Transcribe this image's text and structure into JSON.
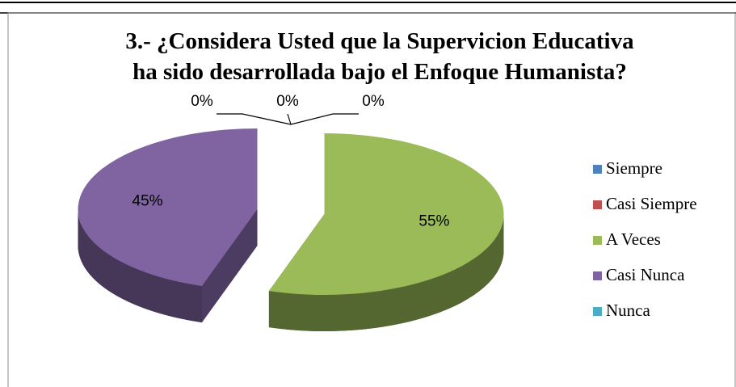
{
  "chart_data": {
    "type": "pie",
    "title": "3.- ¿Considera Usted que la Supervicion Educativa",
    "subtitle": "ha sido desarrollada bajo el Enfoque Humanista?",
    "categories": [
      "Siempre",
      "Casi Siempre",
      "A Veces",
      "Casi Nunca",
      "Nunca"
    ],
    "values": [
      0,
      0,
      55,
      45,
      0
    ],
    "value_labels": [
      "0%",
      "0%",
      "55%",
      "45%",
      "0%"
    ],
    "colors": [
      "#4f81bd",
      "#c0504d",
      "#9bbb59",
      "#8064a2",
      "#4bacc6"
    ],
    "legend": "right"
  }
}
